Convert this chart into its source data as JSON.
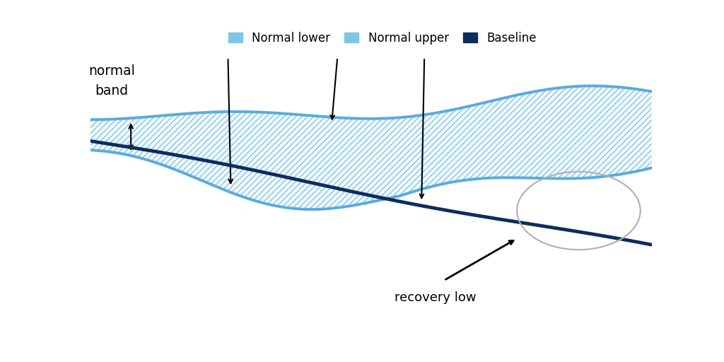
{
  "background_color": "#ffffff",
  "upper_color": "#5aabdc",
  "lower_color": "#5aabdc",
  "baseline_color": "#0d2d5e",
  "hatch_color": "#7dc6f0",
  "legend_entries": [
    "Normal lower",
    "Normal upper",
    "Baseline"
  ],
  "legend_colors_patch": [
    "#7dc6e8",
    "#7dc6e8",
    "#0d2d5e"
  ],
  "normal_band_label_line1": "normal",
  "normal_band_label_line2": "band",
  "recovery_low_label": "recovery low",
  "annotation_fontsize": 13,
  "legend_fontsize": 12
}
